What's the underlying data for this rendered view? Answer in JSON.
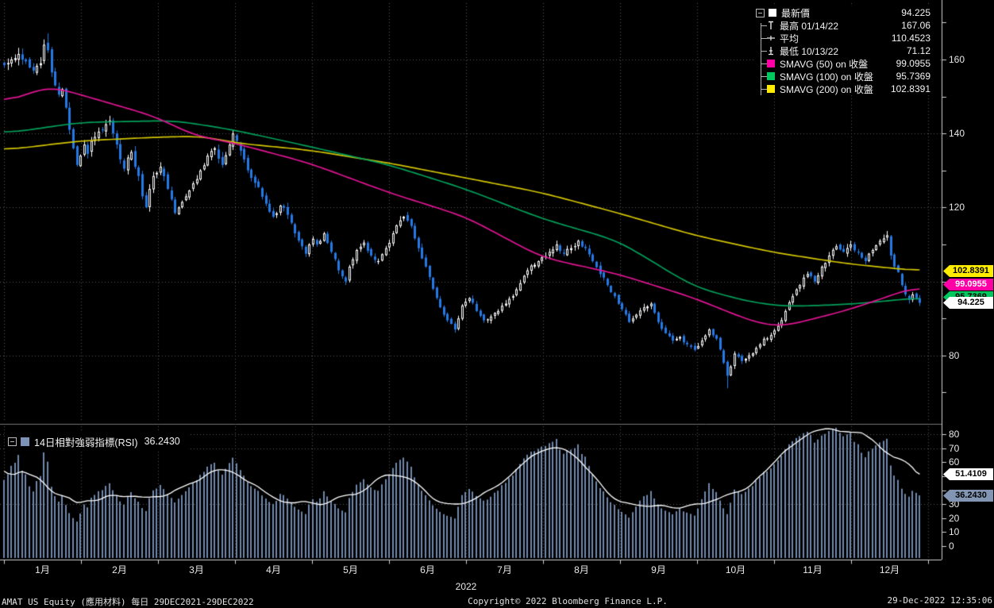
{
  "status_bar": {
    "left": "AMAT US Equity (應用材料)  每日 29DEC2021-29DEC2022",
    "copyright": "Copyright© 2022 Bloomberg Finance L.P.",
    "timestamp": "29-Dec-2022 12:35:06"
  },
  "colors": {
    "background": "#000000",
    "grid": "#585858",
    "axis": "#d0d0d0",
    "separator": "#777777",
    "text": "#e8e8e8",
    "candle_up": "#ffffff",
    "candle_down": "#2479e6",
    "sma50": "#e01493",
    "sma100": "#00a05a",
    "sma200": "#d2c400",
    "rsi_bar": "#7187ab",
    "rsi_line": "#ffffff"
  },
  "legend": {
    "rows": [
      {
        "label": "最新價",
        "value": "94.225",
        "chip": "#ffffff",
        "marker": "square"
      },
      {
        "label": "最高 01/14/22",
        "value": "167.06",
        "chip": "",
        "marker": "high"
      },
      {
        "label": "平均",
        "value": "110.4523",
        "chip": "",
        "marker": "avg"
      },
      {
        "label": "最低 10/13/22",
        "value": "71.12",
        "chip": "",
        "marker": "low"
      },
      {
        "label": "SMAVG (50) on 收盤",
        "value": "99.0955",
        "chip": "#ff00a6",
        "marker": "square"
      },
      {
        "label": "SMAVG (100) on 收盤",
        "value": "95.7369",
        "chip": "#00c85f",
        "marker": "square"
      },
      {
        "label": "SMAVG (200) on 收盤",
        "value": "102.8391",
        "chip": "#ffec00",
        "marker": "square"
      }
    ]
  },
  "price_tags": [
    {
      "value": "102.8391",
      "bg": "#ffec00",
      "fg": "#000000"
    },
    {
      "value": "99.0955",
      "bg": "#ff00a6",
      "fg": "#ffffff"
    },
    {
      "value": "95.7369",
      "bg": "#00c85f",
      "fg": "#000000"
    },
    {
      "value": "94.225",
      "bg": "#ffffff",
      "fg": "#000000"
    }
  ],
  "rsi_tags": [
    {
      "value": "51.4109",
      "bg": "#ffffff",
      "fg": "#000000"
    },
    {
      "value": "36.2430",
      "bg": "#8296b4",
      "fg": "#000000"
    }
  ],
  "rsi_box": {
    "label": "14日相對強弱指標(RSI)",
    "value": "36.2430",
    "chip": "#7e93b8"
  },
  "chart_data": {
    "type": "candlestick",
    "title": "AMAT US Equity (應用材料) 每日 29DEC2021-29DEC2022",
    "x_axis": {
      "start": "29DEC2021",
      "end": "29DEC2022",
      "year": "2022",
      "months": [
        "1月",
        "2月",
        "3月",
        "4月",
        "5月",
        "6月",
        "7月",
        "8月",
        "9月",
        "10月",
        "11月",
        "12月"
      ]
    },
    "price_panel": {
      "ylim": [
        62,
        175
      ],
      "yticks_labeled": [
        80,
        120,
        140,
        160
      ],
      "yticks_all": [
        70,
        80,
        90,
        100,
        110,
        120,
        130,
        140,
        150,
        160,
        170
      ],
      "gridlines_h": [
        80,
        100,
        120,
        140,
        160
      ],
      "last_price": 94.225,
      "high": {
        "date": "01/14/22",
        "value": 167.06
      },
      "low": {
        "date": "10/13/22",
        "value": 71.12
      },
      "average": 110.4523,
      "close_anchors": [
        [
          0,
          158.5
        ],
        [
          2,
          160
        ],
        [
          4,
          161.5
        ],
        [
          6,
          159.5
        ],
        [
          8,
          157
        ],
        [
          10,
          159
        ],
        [
          11,
          164
        ],
        [
          12,
          162.5
        ],
        [
          13,
          156.5
        ],
        [
          14,
          153
        ],
        [
          15,
          150.5
        ],
        [
          16,
          152
        ],
        [
          17,
          147
        ],
        [
          18,
          141
        ],
        [
          19,
          136
        ],
        [
          20,
          131.5
        ],
        [
          21,
          134
        ],
        [
          22,
          137
        ],
        [
          23,
          134.5
        ],
        [
          24,
          138
        ],
        [
          26,
          140.5
        ],
        [
          28,
          142.5
        ],
        [
          29,
          143.5
        ],
        [
          30,
          140
        ],
        [
          31,
          137
        ],
        [
          32,
          133
        ],
        [
          33,
          130.5
        ],
        [
          34,
          133.5
        ],
        [
          35,
          135
        ],
        [
          36,
          131
        ],
        [
          37,
          128.5
        ],
        [
          38,
          123
        ],
        [
          39,
          120
        ],
        [
          40,
          125
        ],
        [
          41,
          128.5
        ],
        [
          43,
          131
        ],
        [
          45,
          125
        ],
        [
          47,
          118.5
        ],
        [
          48,
          120
        ],
        [
          50,
          123
        ],
        [
          52,
          126.5
        ],
        [
          54,
          130
        ],
        [
          56,
          134
        ],
        [
          58,
          136
        ],
        [
          60,
          131.5
        ],
        [
          62,
          137
        ],
        [
          63,
          140
        ],
        [
          64,
          138
        ],
        [
          66,
          133
        ],
        [
          68,
          128
        ],
        [
          70,
          125.5
        ],
        [
          72,
          121
        ],
        [
          74,
          117.5
        ],
        [
          76,
          120.5
        ],
        [
          78,
          118
        ],
        [
          80,
          113
        ],
        [
          82,
          109.5
        ],
        [
          83,
          107.5
        ],
        [
          84,
          110
        ],
        [
          85,
          111.5
        ],
        [
          86,
          110
        ],
        [
          88,
          113
        ],
        [
          90,
          108
        ],
        [
          92,
          103
        ],
        [
          94,
          100
        ],
        [
          95,
          104
        ],
        [
          97,
          108.5
        ],
        [
          99,
          110.5
        ],
        [
          101,
          107
        ],
        [
          103,
          105.5
        ],
        [
          105,
          109
        ],
        [
          107,
          113
        ],
        [
          109,
          116.5
        ],
        [
          110,
          117.5
        ],
        [
          112,
          115
        ],
        [
          114,
          109
        ],
        [
          116,
          104
        ],
        [
          118,
          98
        ],
        [
          120,
          93
        ],
        [
          122,
          89.5
        ],
        [
          124,
          87
        ],
        [
          125,
          90
        ],
        [
          126,
          93.5
        ],
        [
          128,
          95.5
        ],
        [
          130,
          92
        ],
        [
          132,
          89.5
        ],
        [
          134,
          90.5
        ],
        [
          136,
          92
        ],
        [
          138,
          94
        ],
        [
          140,
          96
        ],
        [
          142,
          99.5
        ],
        [
          144,
          103
        ],
        [
          146,
          104.5
        ],
        [
          148,
          106.5
        ],
        [
          150,
          108
        ],
        [
          152,
          110
        ],
        [
          154,
          107.5
        ],
        [
          156,
          109
        ],
        [
          158,
          111
        ],
        [
          160,
          109
        ],
        [
          162,
          105.5
        ],
        [
          164,
          102
        ],
        [
          166,
          99
        ],
        [
          168,
          96
        ],
        [
          170,
          92.5
        ],
        [
          172,
          89
        ],
        [
          174,
          91
        ],
        [
          176,
          93
        ],
        [
          178,
          94
        ],
        [
          180,
          89
        ],
        [
          182,
          86
        ],
        [
          184,
          84
        ],
        [
          186,
          85
        ],
        [
          188,
          83
        ],
        [
          190,
          81.5
        ],
        [
          192,
          84
        ],
        [
          194,
          87
        ],
        [
          196,
          84.5
        ],
        [
          198,
          78
        ],
        [
          199,
          74.5
        ],
        [
          200,
          77
        ],
        [
          201,
          80.5
        ],
        [
          203,
          78.5
        ],
        [
          205,
          80
        ],
        [
          207,
          82
        ],
        [
          209,
          84.5
        ],
        [
          211,
          85.5
        ],
        [
          213,
          88
        ],
        [
          215,
          92
        ],
        [
          217,
          96
        ],
        [
          219,
          99
        ],
        [
          221,
          102
        ],
        [
          223,
          100
        ],
        [
          225,
          104
        ],
        [
          227,
          107
        ],
        [
          229,
          109.5
        ],
        [
          231,
          108
        ],
        [
          233,
          110
        ],
        [
          235,
          108
        ],
        [
          237,
          105.5
        ],
        [
          239,
          108.5
        ],
        [
          241,
          111
        ],
        [
          243,
          112.5
        ],
        [
          244,
          107
        ],
        [
          245,
          104
        ],
        [
          246,
          102.5
        ],
        [
          247,
          99
        ],
        [
          248,
          96.5
        ],
        [
          249,
          95
        ],
        [
          250,
          96.5
        ],
        [
          251,
          95.5
        ],
        [
          252,
          94.225
        ]
      ],
      "sma50": {
        "label": "SMAVG (50) on 收盤",
        "value": 99.0955,
        "color": "#e01493",
        "anchors": [
          [
            0,
            148
          ],
          [
            12,
            153
          ],
          [
            21,
            150.5
          ],
          [
            42,
            144.5
          ],
          [
            52,
            139.5
          ],
          [
            63,
            137.5
          ],
          [
            84,
            132
          ],
          [
            106,
            124
          ],
          [
            127,
            117.5
          ],
          [
            148,
            106.5
          ],
          [
            169,
            102
          ],
          [
            190,
            95.5
          ],
          [
            205,
            89.5
          ],
          [
            213,
            87.5
          ],
          [
            232,
            92.2
          ],
          [
            245,
            96.5
          ],
          [
            252,
            99.0955
          ]
        ]
      },
      "sma100": {
        "label": "SMAVG (100) on 收盤",
        "value": 95.7369,
        "color": "#00a05a",
        "anchors": [
          [
            0,
            140
          ],
          [
            21,
            143
          ],
          [
            47,
            143.5
          ],
          [
            63,
            141
          ],
          [
            84,
            136.5
          ],
          [
            106,
            131.5
          ],
          [
            127,
            125
          ],
          [
            148,
            117
          ],
          [
            169,
            111
          ],
          [
            190,
            98.5
          ],
          [
            205,
            94.5
          ],
          [
            215,
            93.2
          ],
          [
            232,
            93.8
          ],
          [
            244,
            94.8
          ],
          [
            252,
            95.7369
          ]
        ]
      },
      "sma200": {
        "label": "SMAVG (200) on 收盤",
        "value": 102.8391,
        "color": "#d2c400",
        "anchors": [
          [
            0,
            135.5
          ],
          [
            21,
            138
          ],
          [
            42,
            139
          ],
          [
            55,
            139.3
          ],
          [
            63,
            137.5
          ],
          [
            84,
            135.5
          ],
          [
            106,
            132
          ],
          [
            127,
            128
          ],
          [
            148,
            124
          ],
          [
            169,
            118.5
          ],
          [
            190,
            112.5
          ],
          [
            211,
            108
          ],
          [
            232,
            104.8
          ],
          [
            252,
            102.8391
          ]
        ]
      }
    },
    "rsi_panel": {
      "label": "14日相對強弱指標(RSI)",
      "period": 14,
      "ylim": [
        0,
        86
      ],
      "yticks_labeled": [
        0,
        10,
        20,
        30,
        60,
        70,
        80
      ],
      "yticks_all": [
        0,
        10,
        20,
        30,
        40,
        50,
        60,
        70,
        80
      ],
      "gridlines_h": [
        30,
        70,
        80
      ],
      "last_value": 36.243,
      "ma_last_value": 51.4109
    }
  }
}
